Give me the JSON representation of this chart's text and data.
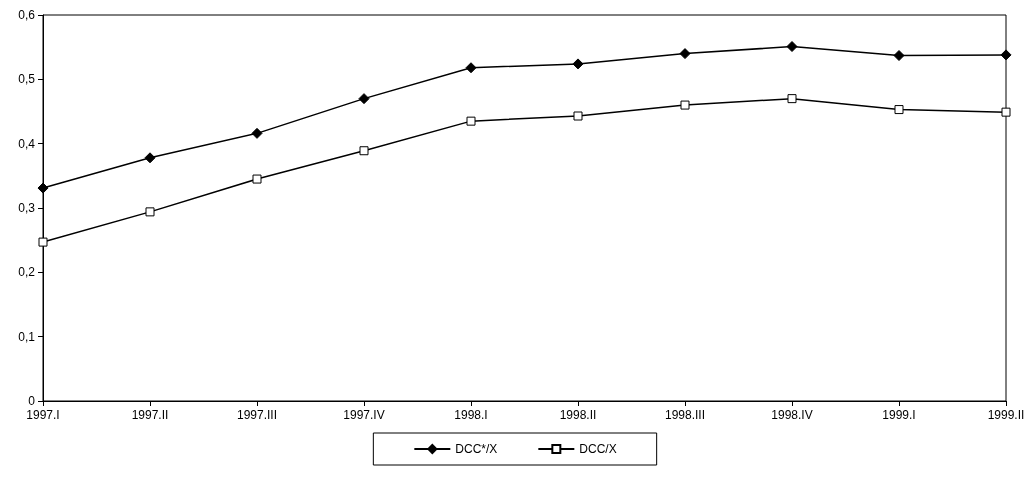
{
  "chart_data": {
    "type": "line",
    "categories": [
      "1997.I",
      "1997.II",
      "1997.III",
      "1997.IV",
      "1998.I",
      "1998.II",
      "1998.III",
      "1998.IV",
      "1999.I",
      "1999.II"
    ],
    "series": [
      {
        "name": "DCC*/X",
        "color": "#000000",
        "marker": "diamond",
        "values": [
          0.331,
          0.378,
          0.416,
          0.47,
          0.518,
          0.524,
          0.54,
          0.551,
          0.537,
          0.538
        ]
      },
      {
        "name": "DCC/X",
        "color": "#000000",
        "marker": "square",
        "values": [
          0.247,
          0.294,
          0.345,
          0.389,
          0.435,
          0.443,
          0.46,
          0.47,
          0.453,
          0.449
        ]
      }
    ],
    "ylim": [
      0,
      0.6
    ],
    "yticks": [
      {
        "value": 0,
        "label": "0"
      },
      {
        "value": 0.1,
        "label": "0,1"
      },
      {
        "value": 0.2,
        "label": "0,2"
      },
      {
        "value": 0.3,
        "label": "0,3"
      },
      {
        "value": 0.4,
        "label": "0,4"
      },
      {
        "value": 0.5,
        "label": "0,5"
      },
      {
        "value": 0.6,
        "label": "0,6"
      }
    ],
    "grid": false,
    "legend": "bottom",
    "line_style": "solid"
  }
}
